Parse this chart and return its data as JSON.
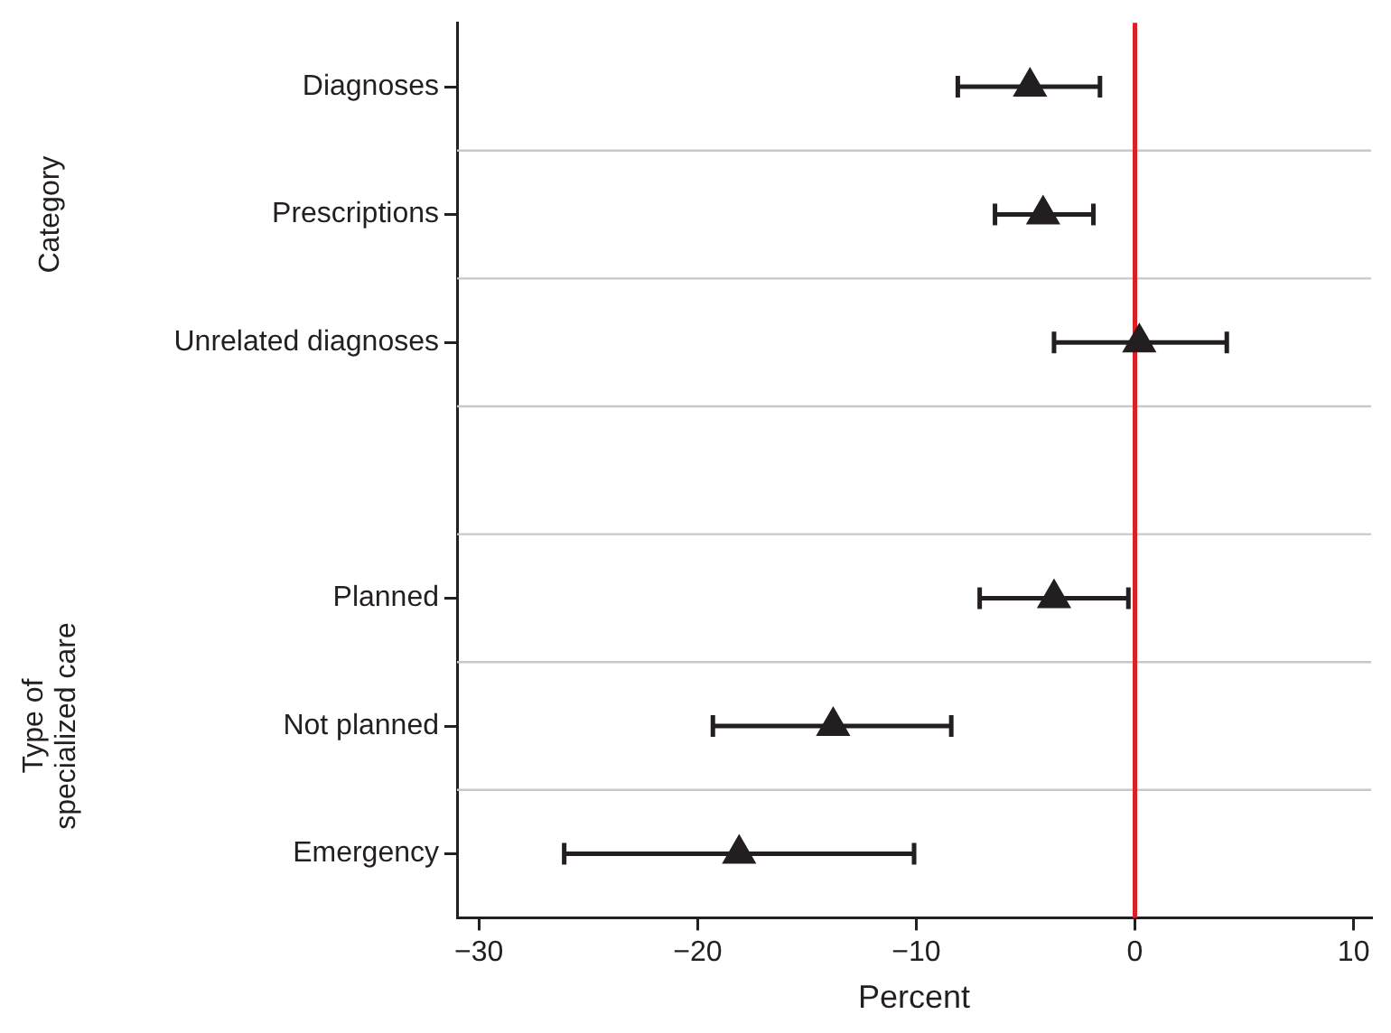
{
  "chart_data": {
    "type": "scatter",
    "orientation": "horizontal",
    "xlabel": "Percent",
    "categories": [
      "Diagnoses",
      "Prescriptions",
      "Unrelated diagnoses",
      null,
      "Planned",
      "Not planned",
      "Emergency"
    ],
    "values": [
      -4.8,
      -4.2,
      0.2,
      null,
      -3.7,
      -13.8,
      -18.1
    ],
    "errors": [
      [
        -8.1,
        -1.6
      ],
      [
        -6.4,
        -1.9
      ],
      [
        -3.7,
        4.2
      ],
      null,
      [
        -7.1,
        -0.3
      ],
      [
        -19.3,
        -8.4
      ],
      [
        -26.1,
        -10.1
      ]
    ],
    "color": "#231f20",
    "marker": "triangle",
    "xlim": [
      -31,
      10.8
    ],
    "xticks": [
      {
        "value": -30,
        "label": "−30"
      },
      {
        "value": -20,
        "label": "−20"
      },
      {
        "value": -10,
        "label": "−10"
      },
      0,
      10
    ],
    "grid": "y",
    "ref_lines": [
      {
        "axis": "x",
        "value": 0,
        "color": "#dc1f26"
      }
    ],
    "annotations": [
      "Category",
      "Type of specialized care"
    ]
  }
}
